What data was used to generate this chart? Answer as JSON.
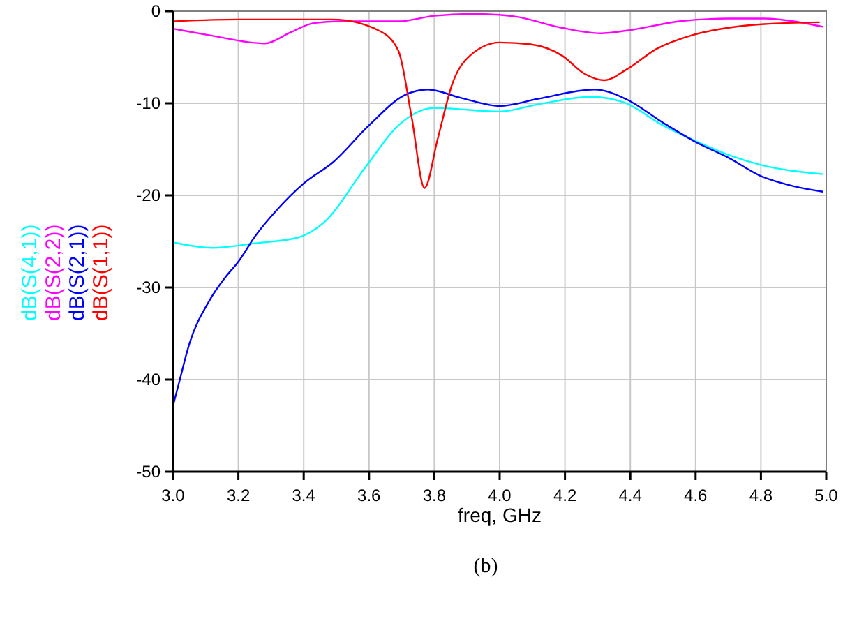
{
  "chart_data": {
    "type": "line",
    "xlabel": "freq, GHz",
    "annotations": [
      "(b)"
    ],
    "legend": "left",
    "grid": true,
    "marker": "none",
    "line_style": "solid",
    "xlim": [
      3.0,
      5.0
    ],
    "xticks": [
      {
        "value": 3.0,
        "label": "3.0"
      },
      {
        "value": 3.2,
        "label": "3.2"
      },
      {
        "value": 3.4,
        "label": "3.4"
      },
      {
        "value": 3.6,
        "label": "3.6"
      },
      {
        "value": 3.8,
        "label": "3.8"
      },
      {
        "value": 4.0,
        "label": "4.0"
      },
      {
        "value": 4.2,
        "label": "4.2"
      },
      {
        "value": 4.4,
        "label": "4.4"
      },
      {
        "value": 4.6,
        "label": "4.6"
      },
      {
        "value": 4.8,
        "label": "4.8"
      },
      {
        "value": 5.0,
        "label": "5.0"
      }
    ],
    "ylim": [
      -50,
      0
    ],
    "yticks": [
      -50,
      -40,
      -30,
      -20,
      -10,
      0
    ],
    "series": [
      {
        "name": "dB(S(4,1))",
        "color": "#00ffff",
        "x": [
          3.0,
          3.12,
          3.25,
          3.38,
          3.46,
          3.59,
          3.69,
          3.8,
          4.0,
          4.12,
          4.28,
          4.38,
          4.5,
          4.6,
          4.7,
          4.8,
          4.99
        ],
        "values": [
          -25.1,
          -25.7,
          -25.2,
          -24.6,
          -23.0,
          -16.9,
          -12.4,
          -10.5,
          -10.9,
          -10.1,
          -9.3,
          -9.9,
          -12.4,
          -14.1,
          -15.6,
          -16.7,
          -17.7
        ]
      },
      {
        "name": "dB(S(2,2))",
        "color": "#ff00ff",
        "x": [
          3.0,
          3.11,
          3.28,
          3.36,
          3.43,
          3.51,
          3.69,
          3.8,
          3.91,
          4.0,
          4.05,
          4.19,
          4.31,
          4.39,
          4.55,
          4.7,
          4.81,
          4.9,
          4.99
        ],
        "values": [
          -1.9,
          -2.6,
          -3.5,
          -2.3,
          -1.3,
          -1.1,
          -1.1,
          -0.5,
          -0.3,
          -0.4,
          -0.6,
          -1.8,
          -2.4,
          -2.1,
          -1.1,
          -0.8,
          -0.8,
          -1.1,
          -1.7
        ]
      },
      {
        "name": "dB(S(2,1))",
        "color": "#0000ff",
        "x": [
          3.0,
          3.015,
          3.05,
          3.11,
          3.16,
          3.2,
          3.25,
          3.32,
          3.4,
          3.49,
          3.6,
          3.71,
          3.78,
          3.88,
          4.0,
          4.12,
          4.29,
          4.39,
          4.5,
          4.6,
          4.7,
          4.8,
          4.9,
          4.99
        ],
        "values": [
          -42.8,
          -40.8,
          -36.1,
          -31.5,
          -28.9,
          -27.2,
          -24.5,
          -21.5,
          -18.7,
          -16.4,
          -12.4,
          -9.1,
          -8.5,
          -9.4,
          -10.3,
          -9.5,
          -8.5,
          -9.6,
          -12.1,
          -14.2,
          -15.9,
          -17.9,
          -19.0,
          -19.6
        ]
      },
      {
        "name": "dB(S(1,1))",
        "color": "#ff0000",
        "x": [
          3.0,
          3.2,
          3.49,
          3.63,
          3.69,
          3.73,
          3.77,
          3.81,
          3.855,
          3.91,
          4.0,
          4.095,
          4.19,
          4.26,
          4.32,
          4.39,
          4.48,
          4.59,
          4.7,
          4.81,
          4.98
        ],
        "values": [
          -1.1,
          -0.9,
          -0.9,
          -2.1,
          -4.3,
          -11.4,
          -19.2,
          -13.9,
          -7.9,
          -4.8,
          -3.4,
          -3.6,
          -4.8,
          -6.8,
          -7.5,
          -6.3,
          -4.1,
          -2.6,
          -1.8,
          -1.4,
          -1.2
        ]
      }
    ]
  }
}
